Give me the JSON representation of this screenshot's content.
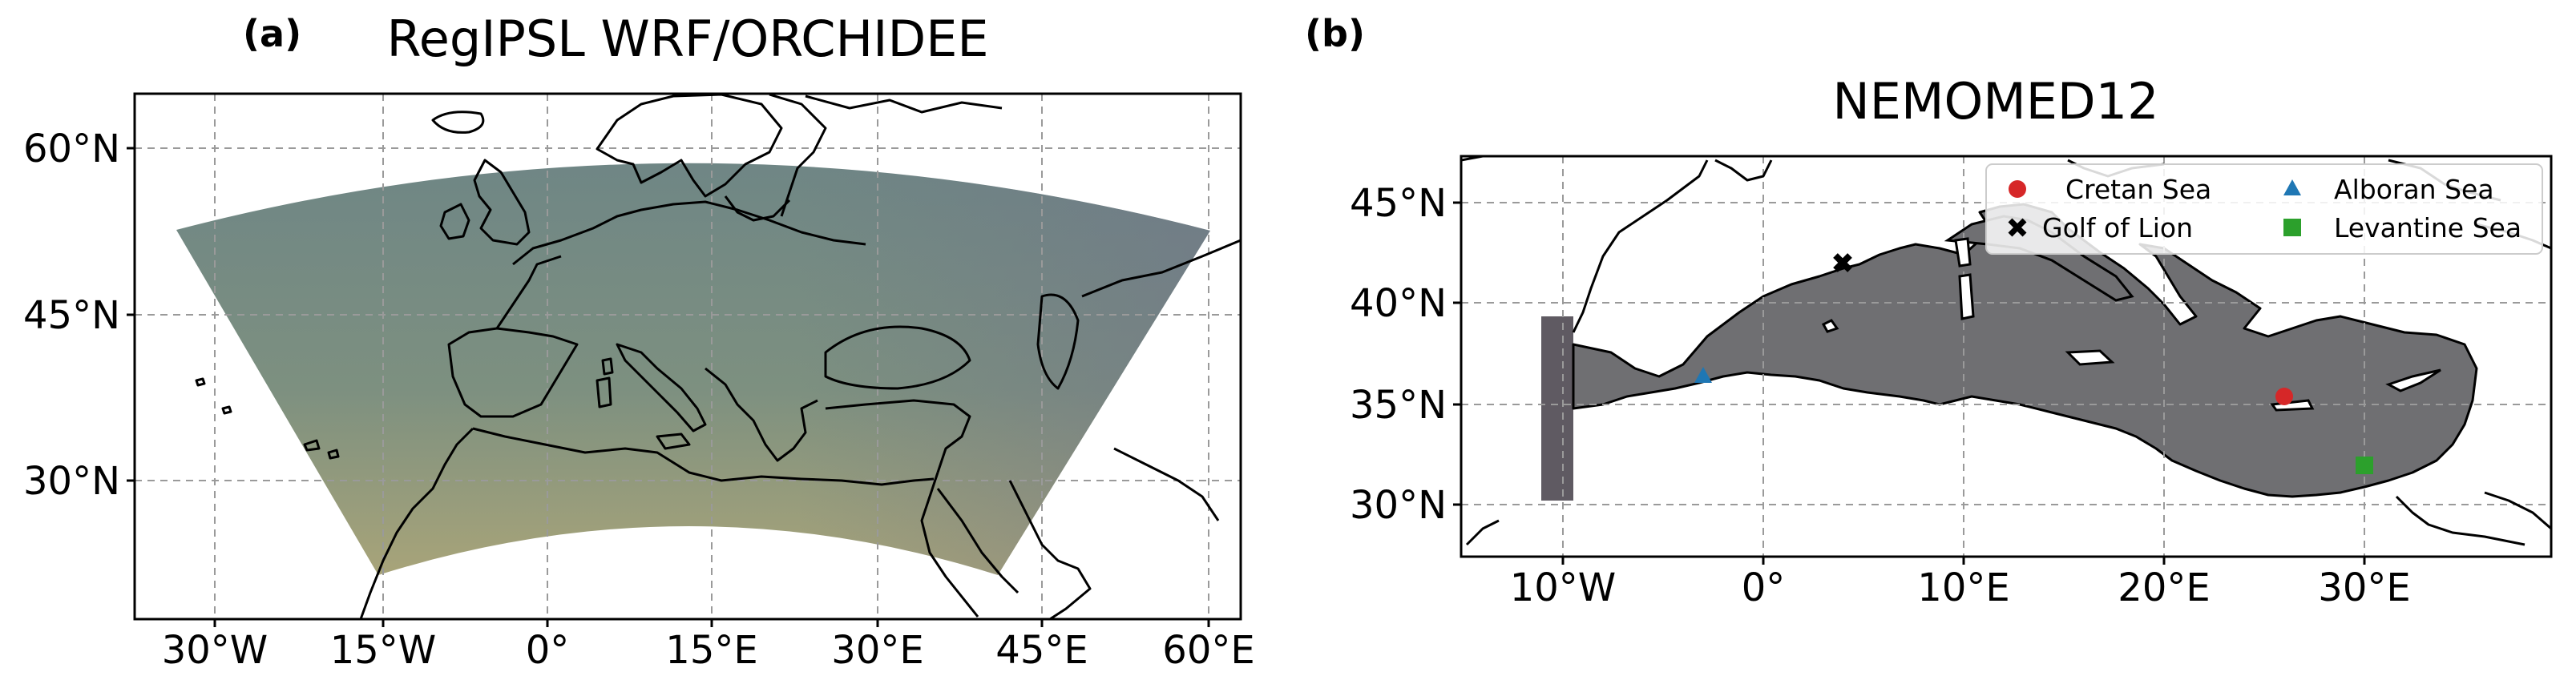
{
  "panel_a": {
    "label": "(a)",
    "title": "RegIPSL WRF/ORCHIDEE",
    "y_ticks": [
      "60°N",
      "45°N",
      "30°N"
    ],
    "x_ticks": [
      "30°W",
      "15°W",
      "0°",
      "15°E",
      "30°E",
      "45°E",
      "60°E"
    ]
  },
  "panel_b": {
    "label": "(b)",
    "title": "NEMOMED12",
    "y_ticks": [
      "45°N",
      "40°N",
      "35°N",
      "30°N"
    ],
    "x_ticks": [
      "10°W",
      "0°",
      "10°E",
      "20°E",
      "30°E"
    ],
    "legend": [
      {
        "name": "Cretan Sea",
        "marker": "circle",
        "color": "#d62728"
      },
      {
        "name": "Golf of Lion",
        "marker": "x",
        "color": "#000000"
      },
      {
        "name": "Alboran Sea",
        "marker": "triangle",
        "color": "#1f77b4"
      },
      {
        "name": "Levantine Sea",
        "marker": "square",
        "color": "#2ca02c"
      }
    ]
  },
  "colors": {
    "wrf_domain_top": "#6f8786",
    "wrf_domain_bottom": "#a4a67a",
    "nemo_sea": "#6e6e70",
    "atlantic_buffer": "#5e5960"
  }
}
